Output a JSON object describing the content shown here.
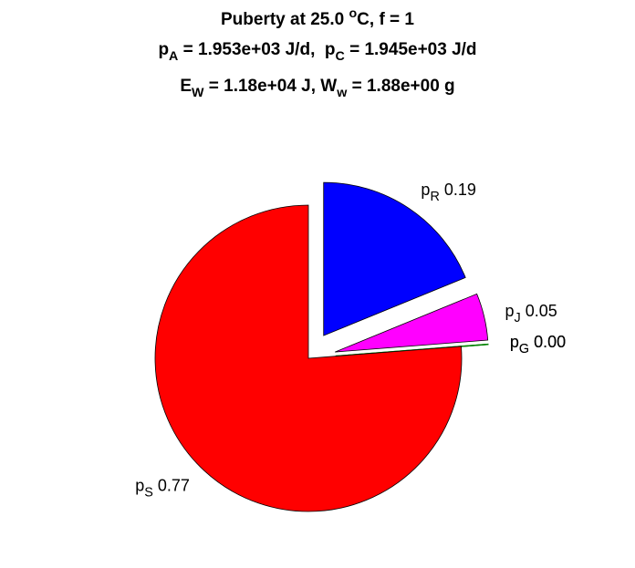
{
  "chart_data": {
    "type": "pie",
    "title": [
      [
        {
          "text": "Puberty at 25.0 "
        },
        {
          "sup": "o"
        },
        {
          "text": "C, f = 1"
        }
      ],
      [
        {
          "text": "p"
        },
        {
          "sub": "A"
        },
        {
          "text": " = 1.953e+03 J/d,  p"
        },
        {
          "sub": "C"
        },
        {
          "text": " = 1.945e+03 J/d"
        }
      ],
      [
        {
          "text": "E"
        },
        {
          "sub": "W"
        },
        {
          "text": " = 1.18e+04 J, W"
        },
        {
          "sub": "w"
        },
        {
          "text": " = 1.88e+00 g"
        }
      ]
    ],
    "categories": [
      {
        "text": "p",
        "sub": "R"
      },
      {
        "text": "p",
        "sub": "J"
      },
      {
        "text": "p",
        "sub": "G"
      },
      {
        "text": "p",
        "sub": "G"
      },
      {
        "text": "p",
        "sub": "S"
      }
    ],
    "values": [
      0.19,
      0.05,
      0.0,
      0.0,
      0.77
    ],
    "value_labels": [
      "0.19",
      "0.05",
      "0.00",
      "0.00",
      "0.77"
    ],
    "colors": [
      "#0000ff",
      "#ff00ff",
      "#008000",
      "#008000",
      "#ff0000"
    ],
    "explode": [
      true,
      true,
      true,
      true,
      false
    ]
  }
}
